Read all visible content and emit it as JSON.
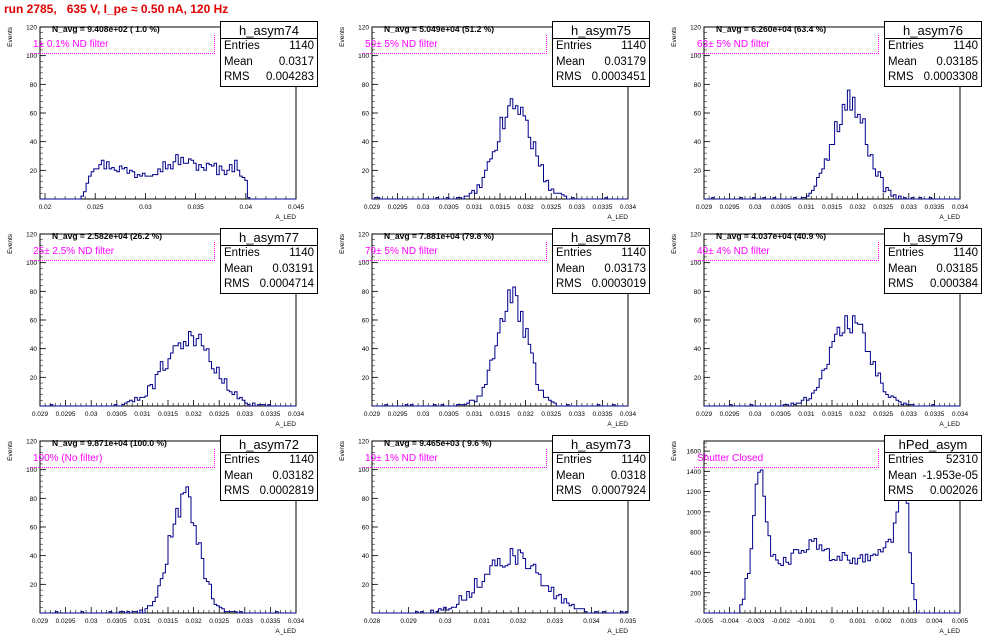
{
  "title": "run 2785,   635 V, I_pe ≈ 0.50 nA, 120 Hz",
  "xlabel": "A_LED",
  "ylabel": "Events",
  "colors": {
    "hist": "#00008b",
    "title": "#e00000",
    "filter": "#ff00ff"
  },
  "chart_data": [
    {
      "type": "bar",
      "name": "h_asym74",
      "navg": "N_avg = 9.408e+02 ( 1.0 %)",
      "filter": "1± 0.1% ND filter",
      "stats": {
        "Entries": "1140",
        "Mean": "0.0317",
        "RMS": "0.004283"
      },
      "xlim": [
        0.0195,
        0.045
      ],
      "ylim": [
        0,
        120
      ],
      "xticks": [
        "0.02",
        "0.025",
        "0.03",
        "0.035",
        "0.04",
        "0.045"
      ],
      "yticks": [
        "20",
        "40",
        "60",
        "80",
        "100",
        "120"
      ],
      "mean": 0.0317,
      "rms": 0.004283,
      "shape": "flat",
      "entries": 1140
    },
    {
      "type": "bar",
      "name": "h_asym75",
      "navg": "N_avg = 5.049e+04 (51.2 %)",
      "filter": "50± 5% ND filter",
      "stats": {
        "Entries": "1140",
        "Mean": "0.03179",
        "RMS": "0.0003451"
      },
      "xlim": [
        0.029,
        0.034
      ],
      "ylim": [
        0,
        120
      ],
      "xticks": [
        "0.029",
        "0.0295",
        "0.03",
        "0.0305",
        "0.031",
        "0.0315",
        "0.032",
        "0.0325",
        "0.033",
        "0.0335",
        "0.034"
      ],
      "yticks": [
        "20",
        "40",
        "60",
        "80",
        "100",
        "120"
      ],
      "mean": 0.03179,
      "rms": 0.0003451,
      "shape": "gauss",
      "entries": 1140
    },
    {
      "type": "bar",
      "name": "h_asym76",
      "navg": "N_avg = 6.260e+04 (63.4 %)",
      "filter": "63± 5% ND filter",
      "stats": {
        "Entries": "1140",
        "Mean": "0.03185",
        "RMS": "0.0003308"
      },
      "xlim": [
        0.029,
        0.034
      ],
      "ylim": [
        0,
        120
      ],
      "xticks": [
        "0.029",
        "0.0295",
        "0.03",
        "0.0305",
        "0.031",
        "0.0315",
        "0.032",
        "0.0325",
        "0.033",
        "0.0335",
        "0.034"
      ],
      "yticks": [
        "20",
        "40",
        "60",
        "80",
        "100",
        "120"
      ],
      "mean": 0.03185,
      "rms": 0.0003308,
      "shape": "gauss",
      "entries": 1140
    },
    {
      "type": "bar",
      "name": "h_asym77",
      "navg": "N_avg = 2.582e+04 (26.2 %)",
      "filter": "25± 2.5% ND filter",
      "stats": {
        "Entries": "1140",
        "Mean": "0.03191",
        "RMS": "0.0004714"
      },
      "xlim": [
        0.029,
        0.034
      ],
      "ylim": [
        0,
        120
      ],
      "xticks": [
        "0.029",
        "0.0295",
        "0.03",
        "0.0305",
        "0.031",
        "0.0315",
        "0.032",
        "0.0325",
        "0.033",
        "0.0335",
        "0.034"
      ],
      "yticks": [
        "20",
        "40",
        "60",
        "80",
        "100",
        "120"
      ],
      "mean": 0.03191,
      "rms": 0.0004714,
      "shape": "gauss",
      "entries": 1140
    },
    {
      "type": "bar",
      "name": "h_asym78",
      "navg": "N_avg = 7.881e+04 (79.8 %)",
      "filter": "79± 5% ND filter",
      "stats": {
        "Entries": "1140",
        "Mean": "0.03173",
        "RMS": "0.0003019"
      },
      "xlim": [
        0.029,
        0.034
      ],
      "ylim": [
        0,
        120
      ],
      "xticks": [
        "0.029",
        "0.0295",
        "0.03",
        "0.0305",
        "0.031",
        "0.0315",
        "0.032",
        "0.0325",
        "0.033",
        "0.0335",
        "0.034"
      ],
      "yticks": [
        "20",
        "40",
        "60",
        "80",
        "100",
        "120"
      ],
      "mean": 0.03173,
      "rms": 0.0003019,
      "shape": "gauss",
      "entries": 1140
    },
    {
      "type": "bar",
      "name": "h_asym79",
      "navg": "N_avg = 4.037e+04 (40.9 %)",
      "filter": "40± 4% ND filter",
      "stats": {
        "Entries": "1140",
        "Mean": "0.03185",
        "RMS": "0.000384"
      },
      "xlim": [
        0.029,
        0.034
      ],
      "ylim": [
        0,
        120
      ],
      "xticks": [
        "0.029",
        "0.0295",
        "0.03",
        "0.0305",
        "0.031",
        "0.0315",
        "0.032",
        "0.0325",
        "0.033",
        "0.0335",
        "0.034"
      ],
      "yticks": [
        "20",
        "40",
        "60",
        "80",
        "100",
        "120"
      ],
      "mean": 0.03185,
      "rms": 0.000384,
      "shape": "gauss",
      "entries": 1140
    },
    {
      "type": "bar",
      "name": "h_asym72",
      "navg": "N_avg = 9.871e+04 (100.0 %)",
      "filter": "100% (No filter)",
      "stats": {
        "Entries": "1140",
        "Mean": "0.03182",
        "RMS": "0.0002819"
      },
      "xlim": [
        0.029,
        0.034
      ],
      "ylim": [
        0,
        120
      ],
      "xticks": [
        "0.029",
        "0.0295",
        "0.03",
        "0.0305",
        "0.031",
        "0.0315",
        "0.032",
        "0.0325",
        "0.033",
        "0.0335",
        "0.034"
      ],
      "yticks": [
        "20",
        "40",
        "60",
        "80",
        "100",
        "120"
      ],
      "mean": 0.03182,
      "rms": 0.0002819,
      "shape": "gauss",
      "entries": 1140
    },
    {
      "type": "bar",
      "name": "h_asym73",
      "navg": "N_avg = 9.465e+03 ( 9.6 %)",
      "filter": "10± 1% ND filter",
      "stats": {
        "Entries": "1140",
        "Mean": "0.0318",
        "RMS": "0.0007924"
      },
      "xlim": [
        0.028,
        0.035
      ],
      "ylim": [
        0,
        120
      ],
      "xticks": [
        "0.028",
        "0.029",
        "0.03",
        "0.031",
        "0.032",
        "0.033",
        "0.034",
        "0.035"
      ],
      "yticks": [
        "20",
        "40",
        "60",
        "80",
        "100",
        "120"
      ],
      "mean": 0.0318,
      "rms": 0.0007924,
      "shape": "gauss",
      "entries": 1140
    },
    {
      "type": "bar",
      "name": "hPed_asym",
      "navg": "",
      "filter": "Shutter Closed",
      "stats": {
        "Entries": "52310",
        "Mean": "-1.953e-05",
        "RMS": "0.002026"
      },
      "xlim": [
        -0.005,
        0.005
      ],
      "ylim": [
        0,
        1700
      ],
      "xticks": [
        "-0.005",
        "-0.004",
        "-0.003",
        "-0.002",
        "-0.001",
        "0",
        "0.001",
        "0.002",
        "0.003",
        "0.004",
        "0.005"
      ],
      "yticks": [
        "200",
        "400",
        "600",
        "800",
        "1000",
        "1200",
        "1400",
        "1600"
      ],
      "mean": -1.953e-05,
      "rms": 0.002026,
      "shape": "pedestal",
      "entries": 52310
    }
  ]
}
